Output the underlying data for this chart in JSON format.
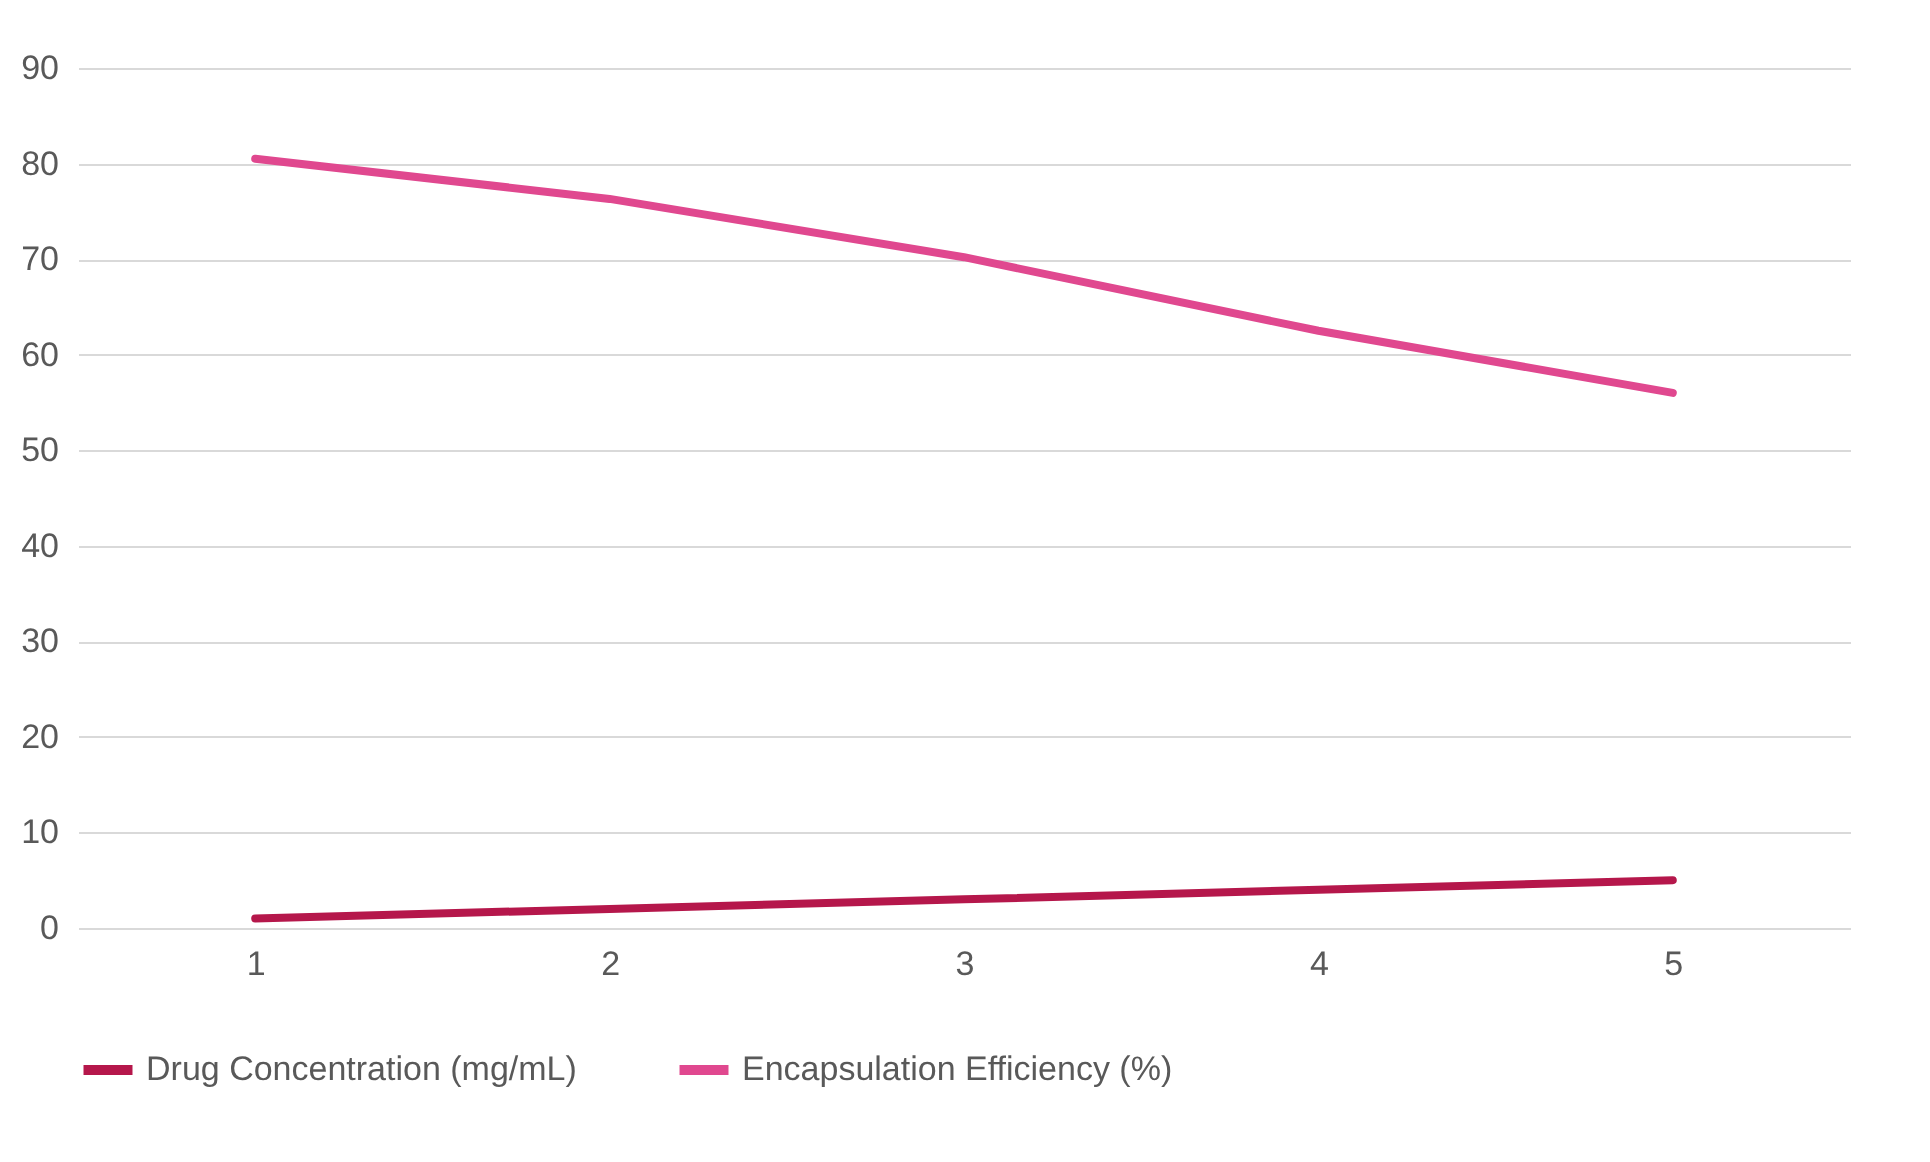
{
  "chart_data": {
    "type": "line",
    "categories": [
      "1",
      "2",
      "3",
      "4",
      "5"
    ],
    "series": [
      {
        "name": "Drug Concentration (mg/mL)",
        "color": "#b5174b",
        "values": [
          1,
          2,
          3,
          4,
          5
        ]
      },
      {
        "name": "Encapsulation Efficiency (%)",
        "color": "#e0488f",
        "values": [
          80.5,
          76.3,
          70.2,
          62.5,
          56
        ]
      }
    ],
    "ylim": [
      0,
      90
    ],
    "yticks": [
      0,
      10,
      20,
      30,
      40,
      50,
      60,
      70,
      80,
      90
    ],
    "grid": "y",
    "legend": "bottom",
    "marker": "none",
    "line_style": "solid"
  }
}
